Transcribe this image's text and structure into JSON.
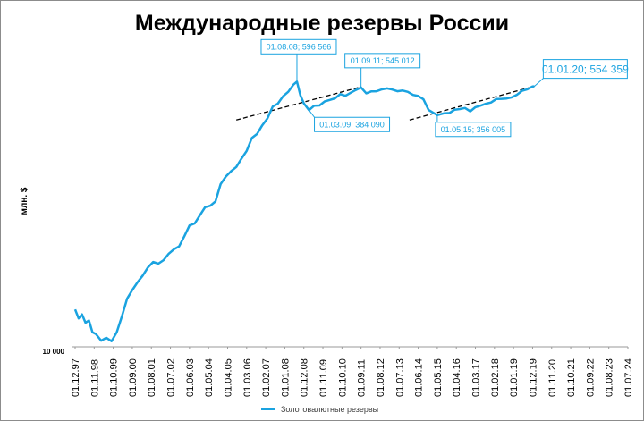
{
  "chart_data": {
    "type": "line",
    "title": "Международные резервы России",
    "ylabel": "млн. $",
    "y_tick_labels": [
      "10 000"
    ],
    "x_tick_labels": [
      "01.12.97",
      "01.11.98",
      "01.10.99",
      "01.09.00",
      "01.08.01",
      "01.07.02",
      "01.06.03",
      "01.05.04",
      "01.04.05",
      "01.03.06",
      "01.02.07",
      "01.01.08",
      "01.12.08",
      "01.11.09",
      "01.10.10",
      "01.09.11",
      "01.08.12",
      "01.07.13",
      "01.06.14",
      "01.05.15",
      "01.04.16",
      "01.03.17",
      "01.02.18",
      "01.01.19",
      "01.12.19",
      "01.11.20",
      "01.10.21",
      "01.09.22",
      "01.08.23",
      "01.07.24"
    ],
    "scale": "log",
    "ylim": [
      10000,
      800000
    ],
    "series": [
      {
        "name": "Золотовалютные резервы",
        "color": "#1aa3e0",
        "points": [
          [
            "1997-12",
            17800
          ],
          [
            "1998-02",
            15500
          ],
          [
            "1998-04",
            16500
          ],
          [
            "1998-06",
            14500
          ],
          [
            "1998-08",
            15000
          ],
          [
            "1998-10",
            12500
          ],
          [
            "1998-12",
            12200
          ],
          [
            "1999-03",
            11000
          ],
          [
            "1999-06",
            11500
          ],
          [
            "1999-09",
            10900
          ],
          [
            "1999-12",
            12500
          ],
          [
            "2000-03",
            16000
          ],
          [
            "2000-06",
            21000
          ],
          [
            "2000-09",
            24000
          ],
          [
            "2000-12",
            27000
          ],
          [
            "2001-03",
            30000
          ],
          [
            "2001-06",
            34000
          ],
          [
            "2001-09",
            37000
          ],
          [
            "2001-12",
            36000
          ],
          [
            "2002-03",
            38000
          ],
          [
            "2002-06",
            42000
          ],
          [
            "2002-09",
            45000
          ],
          [
            "2002-12",
            47000
          ],
          [
            "2003-03",
            55000
          ],
          [
            "2003-06",
            65000
          ],
          [
            "2003-09",
            67000
          ],
          [
            "2003-12",
            76000
          ],
          [
            "2004-03",
            86000
          ],
          [
            "2004-06",
            88000
          ],
          [
            "2004-09",
            94000
          ],
          [
            "2004-12",
            123000
          ],
          [
            "2005-03",
            138000
          ],
          [
            "2005-06",
            150000
          ],
          [
            "2005-09",
            160000
          ],
          [
            "2005-12",
            182000
          ],
          [
            "2006-03",
            205000
          ],
          [
            "2006-06",
            250000
          ],
          [
            "2006-09",
            266000
          ],
          [
            "2006-12",
            304000
          ],
          [
            "2007-03",
            338000
          ],
          [
            "2007-06",
            406000
          ],
          [
            "2007-09",
            425000
          ],
          [
            "2007-12",
            476000
          ],
          [
            "2008-03",
            510000
          ],
          [
            "2008-06",
            569000
          ],
          [
            "2008-08",
            596566
          ],
          [
            "2008-10",
            484000
          ],
          [
            "2008-12",
            427000
          ],
          [
            "2009-03",
            384090
          ],
          [
            "2009-06",
            412000
          ],
          [
            "2009-09",
            413000
          ],
          [
            "2009-12",
            439000
          ],
          [
            "2010-03",
            450000
          ],
          [
            "2010-06",
            461000
          ],
          [
            "2010-09",
            492000
          ],
          [
            "2010-12",
            479000
          ],
          [
            "2011-03",
            502000
          ],
          [
            "2011-06",
            524000
          ],
          [
            "2011-09",
            545012
          ],
          [
            "2011-12",
            498000
          ],
          [
            "2012-03",
            513000
          ],
          [
            "2012-06",
            514000
          ],
          [
            "2012-09",
            529000
          ],
          [
            "2012-12",
            537000
          ],
          [
            "2013-03",
            528000
          ],
          [
            "2013-06",
            514000
          ],
          [
            "2013-09",
            520000
          ],
          [
            "2013-12",
            509000
          ],
          [
            "2014-03",
            486000
          ],
          [
            "2014-06",
            478000
          ],
          [
            "2014-09",
            454000
          ],
          [
            "2014-12",
            385000
          ],
          [
            "2015-05",
            356005
          ],
          [
            "2015-09",
            366000
          ],
          [
            "2015-12",
            368000
          ],
          [
            "2016-03",
            387000
          ],
          [
            "2016-06",
            391000
          ],
          [
            "2016-09",
            397000
          ],
          [
            "2016-12",
            377000
          ],
          [
            "2017-03",
            402000
          ],
          [
            "2017-06",
            412000
          ],
          [
            "2017-09",
            424000
          ],
          [
            "2017-12",
            432000
          ],
          [
            "2018-03",
            456000
          ],
          [
            "2018-06",
            457000
          ],
          [
            "2018-09",
            460000
          ],
          [
            "2018-12",
            468000
          ],
          [
            "2019-03",
            487000
          ],
          [
            "2019-06",
            518000
          ],
          [
            "2019-09",
            530000
          ],
          [
            "2019-12",
            554000
          ],
          [
            "2020-01",
            554359
          ]
        ]
      }
    ],
    "trendlines": [
      {
        "from": [
          "2005-09",
          330000
        ],
        "to": [
          "2011-09",
          550000
        ]
      },
      {
        "from": [
          "2014-01",
          330000
        ],
        "to": [
          "2020-01",
          555000
        ]
      }
    ],
    "annotations": [
      {
        "date": "2008-08",
        "value": 596566,
        "text": "01.08.08; 596 566"
      },
      {
        "date": "2011-09",
        "value": 545012,
        "text": "01.09.11; 545 012"
      },
      {
        "date": "2009-03",
        "value": 384090,
        "text": "01.03.09; 384 090"
      },
      {
        "date": "2015-05",
        "value": 356005,
        "text": "01.05.15; 356 005"
      },
      {
        "date": "2020-01",
        "value": 554359,
        "text": "01.01.20; 554 359"
      }
    ],
    "legend": "bottom",
    "grid": false
  }
}
